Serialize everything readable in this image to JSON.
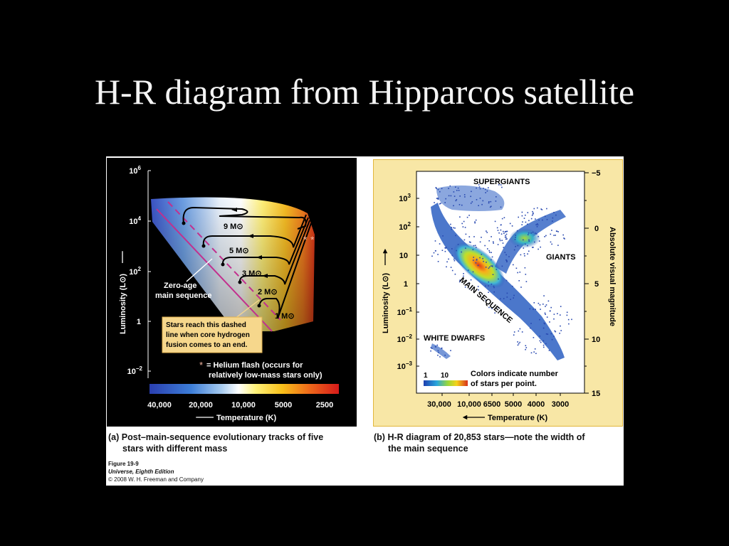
{
  "slide": {
    "title": "H-R diagram from Hipparcos satellite"
  },
  "panel_a": {
    "y_axis_label": "Luminosity (L⊙)",
    "y_ticks": [
      {
        "base": "10",
        "exp": "6"
      },
      {
        "base": "10",
        "exp": "4"
      },
      {
        "base": "10",
        "exp": "2"
      },
      {
        "base": "1",
        "exp": ""
      },
      {
        "base": "10",
        "exp": "−2"
      }
    ],
    "x_ticks": [
      "40,000",
      "20,000",
      "10,000",
      "5000",
      "2500"
    ],
    "x_axis_label": "Temperature (K)",
    "tracks": [
      "9 M⊙",
      "5 M⊙",
      "3 M⊙",
      "2 M⊙",
      "1 M⊙"
    ],
    "zams_label": [
      "Zero-age",
      "main sequence"
    ],
    "callout": [
      "Stars reach this dashed",
      "line when core hydrogen",
      "fusion comes to an end."
    ],
    "helium_flash": [
      "= Helium flash (occurs for",
      "relatively low-mass stars only)"
    ],
    "helium_symbol": "*",
    "caption_label": "(a)",
    "caption": [
      "Post–main-sequence evolutionary tracks of five",
      "stars with different mass"
    ]
  },
  "panel_b": {
    "y_left_label": "Luminosity (L⊙)",
    "y_left_ticks": [
      {
        "base": "10",
        "exp": "3"
      },
      {
        "base": "10",
        "exp": "2"
      },
      {
        "base": "10",
        "exp": ""
      },
      {
        "base": "1",
        "exp": ""
      },
      {
        "base": "10",
        "exp": "−1"
      },
      {
        "base": "10",
        "exp": "−2"
      },
      {
        "base": "10",
        "exp": "−3"
      }
    ],
    "y_right_label": "Absolute visual magnitude",
    "y_right_ticks": [
      "−5",
      "0",
      "5",
      "10",
      "15"
    ],
    "x_ticks": [
      "30,000",
      "10,000",
      "6500",
      "5000",
      "4000",
      "3000"
    ],
    "x_axis_label": "Temperature (K)",
    "regions": {
      "supergiants": "SUPERGIANTS",
      "giants": "GIANTS",
      "main_sequence": "MAIN SEQUENCE",
      "white_dwarfs": "WHITE DWARFS"
    },
    "colorbar_min": "1",
    "colorbar_max": "10",
    "colorbar_note": [
      "Colors indicate number",
      "of stars per point."
    ],
    "caption_label": "(b)",
    "caption": [
      "H-R diagram of 20,853 stars—note the width of",
      "the main sequence"
    ]
  },
  "figure_credit": {
    "number": "Figure 19-9",
    "book": "Universe, Eighth Edition",
    "copyright": "© 2008 W. H. Freeman and Company"
  },
  "colors": {
    "background": "#000000",
    "title": "#f4f4f4",
    "panel_b_bg": "#f8e7a6",
    "callout_bg": "#f6d78c",
    "zams_line": "#c2308e"
  }
}
